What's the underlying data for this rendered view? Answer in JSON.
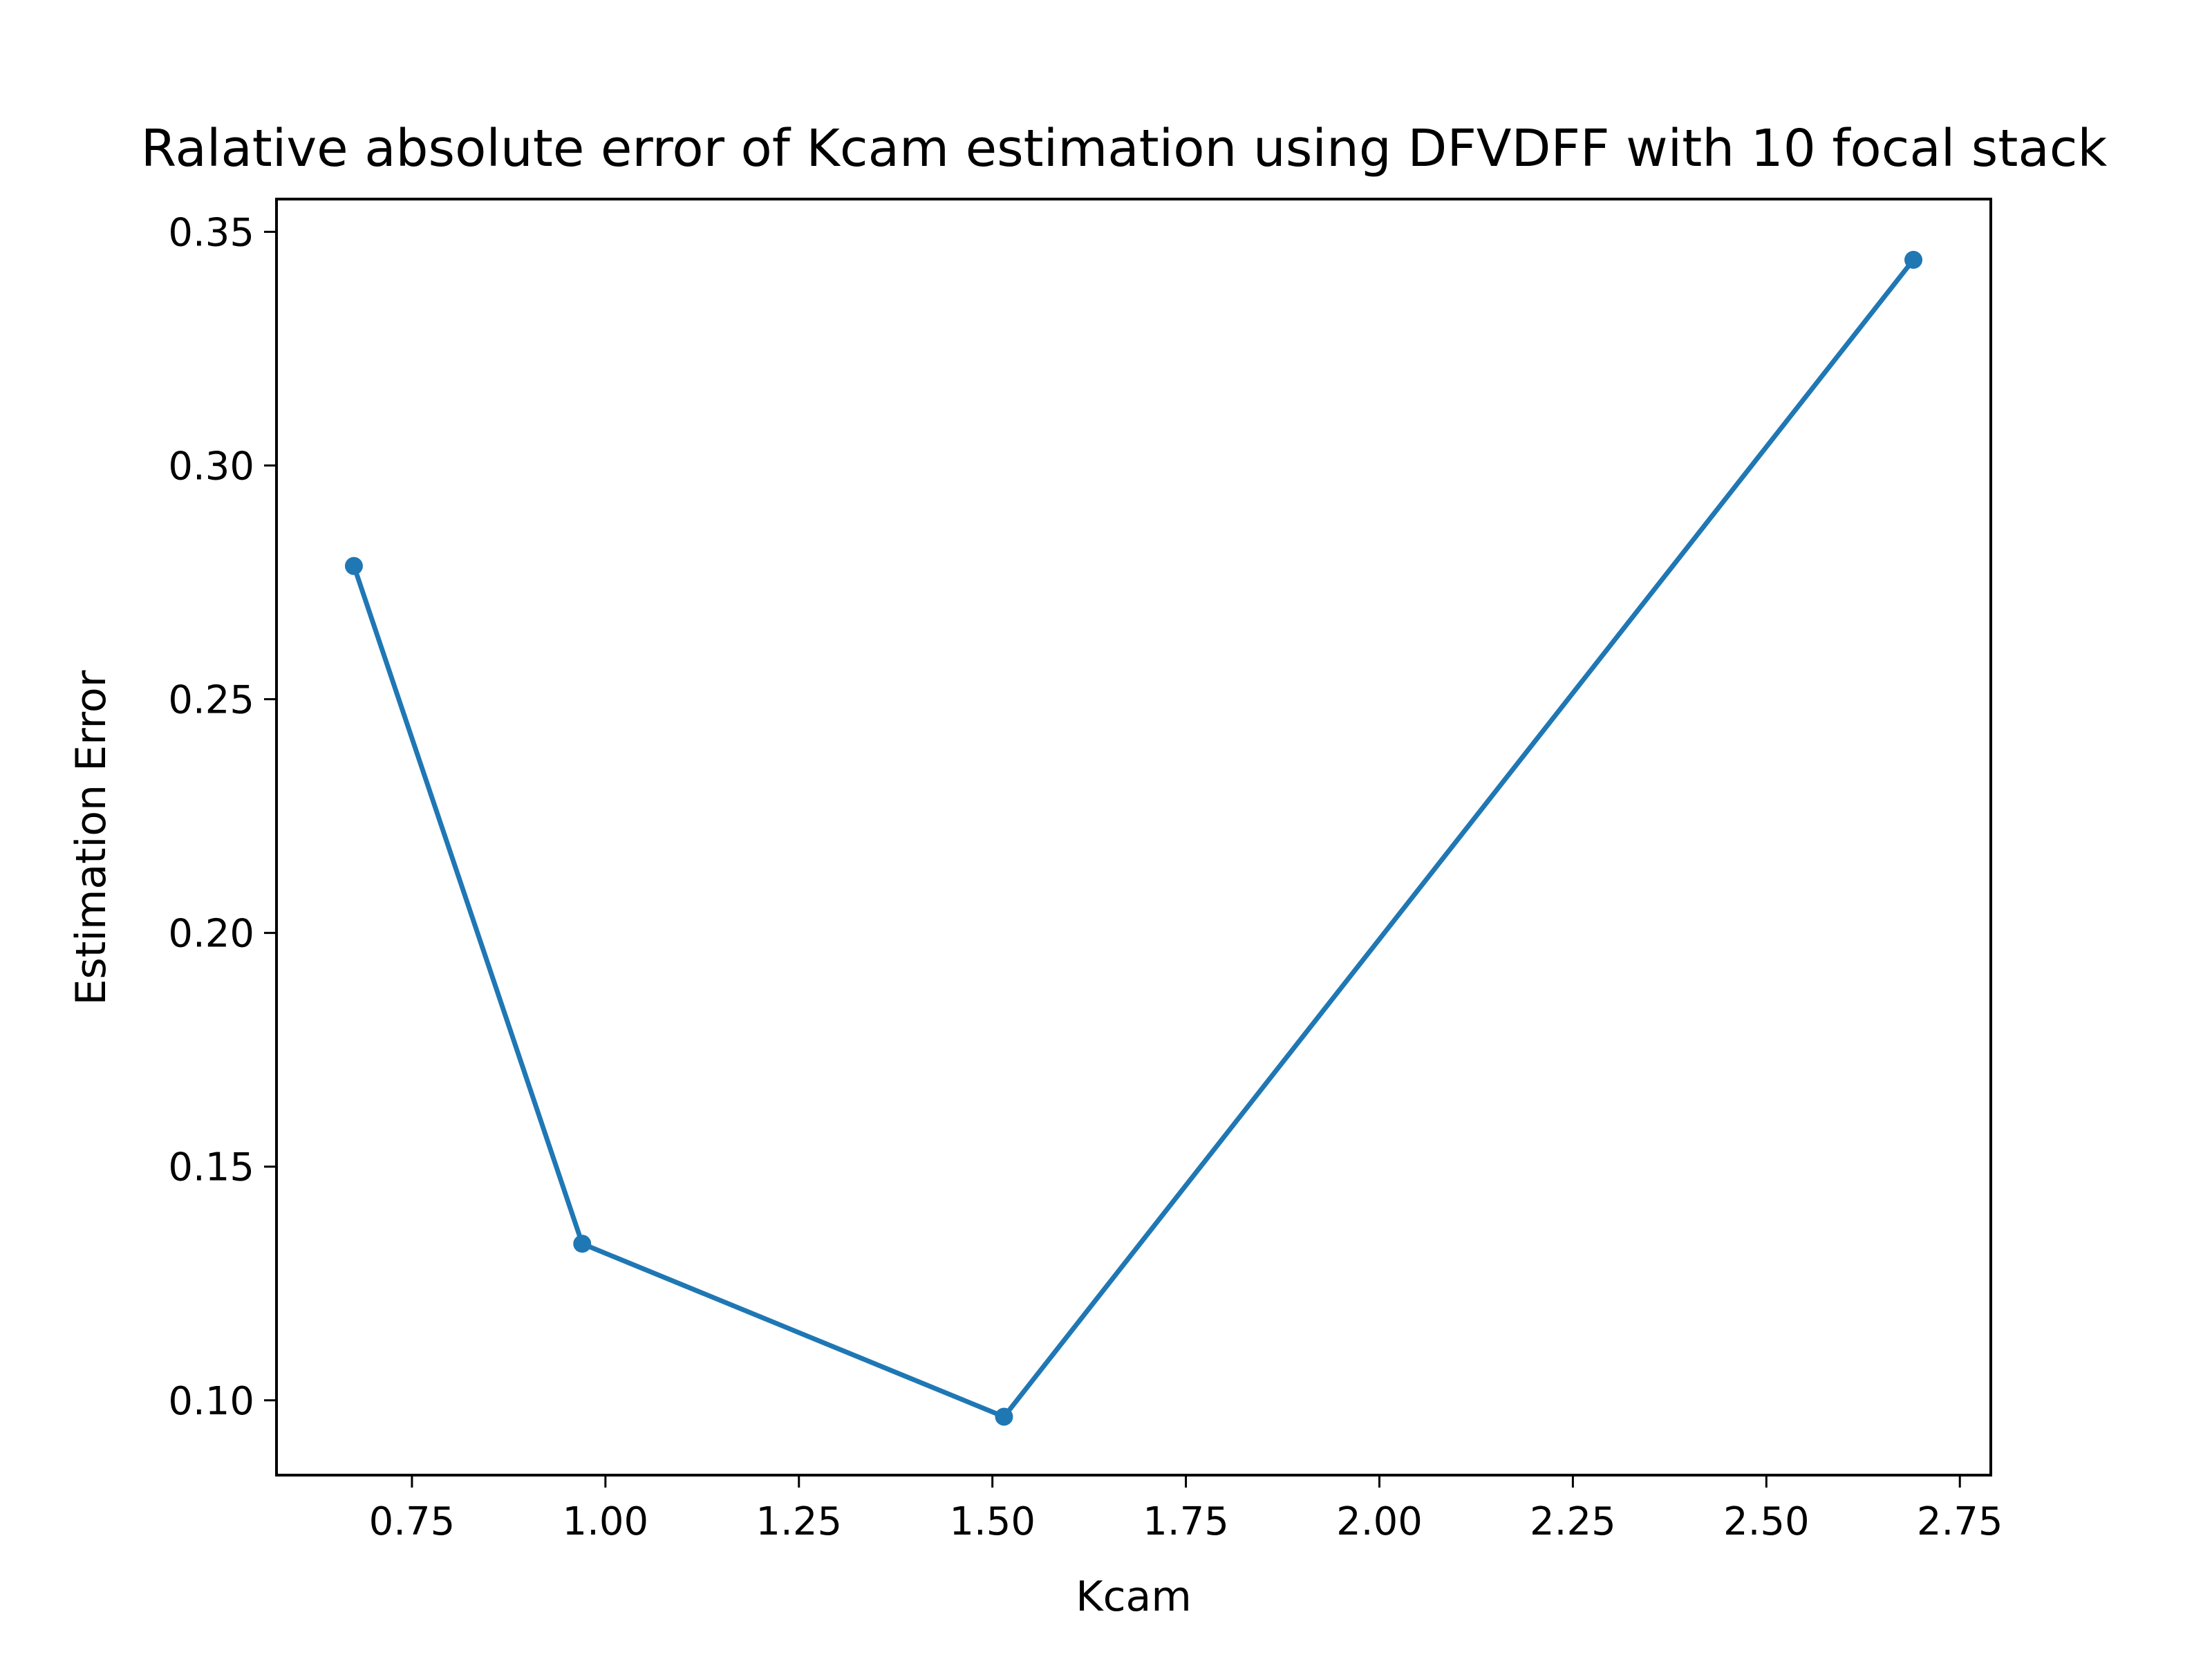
{
  "chart_data": {
    "type": "line",
    "title": "Ralative absolute error of Kcam estimation using DFVDFF with 10 focal stack",
    "xlabel": "Kcam",
    "ylabel": "Estimation Error",
    "xlim": [
      0.575,
      2.79
    ],
    "ylim": [
      0.084,
      0.357
    ],
    "x_ticks": [
      0.75,
      1.0,
      1.25,
      1.5,
      1.75,
      2.0,
      2.25,
      2.5,
      2.75
    ],
    "x_tick_labels": [
      "0.75",
      "1.00",
      "1.25",
      "1.50",
      "1.75",
      "2.00",
      "2.25",
      "2.50",
      "2.75"
    ],
    "y_ticks": [
      0.1,
      0.15,
      0.2,
      0.25,
      0.3,
      0.35
    ],
    "y_tick_labels": [
      "0.10",
      "0.15",
      "0.20",
      "0.25",
      "0.30",
      "0.35"
    ],
    "grid": false,
    "series": [
      {
        "color": "#1f77b4",
        "marker": "circle",
        "x": [
          0.675,
          0.97,
          1.515,
          2.69
        ],
        "y": [
          0.2785,
          0.1335,
          0.0965,
          0.344
        ]
      }
    ]
  }
}
